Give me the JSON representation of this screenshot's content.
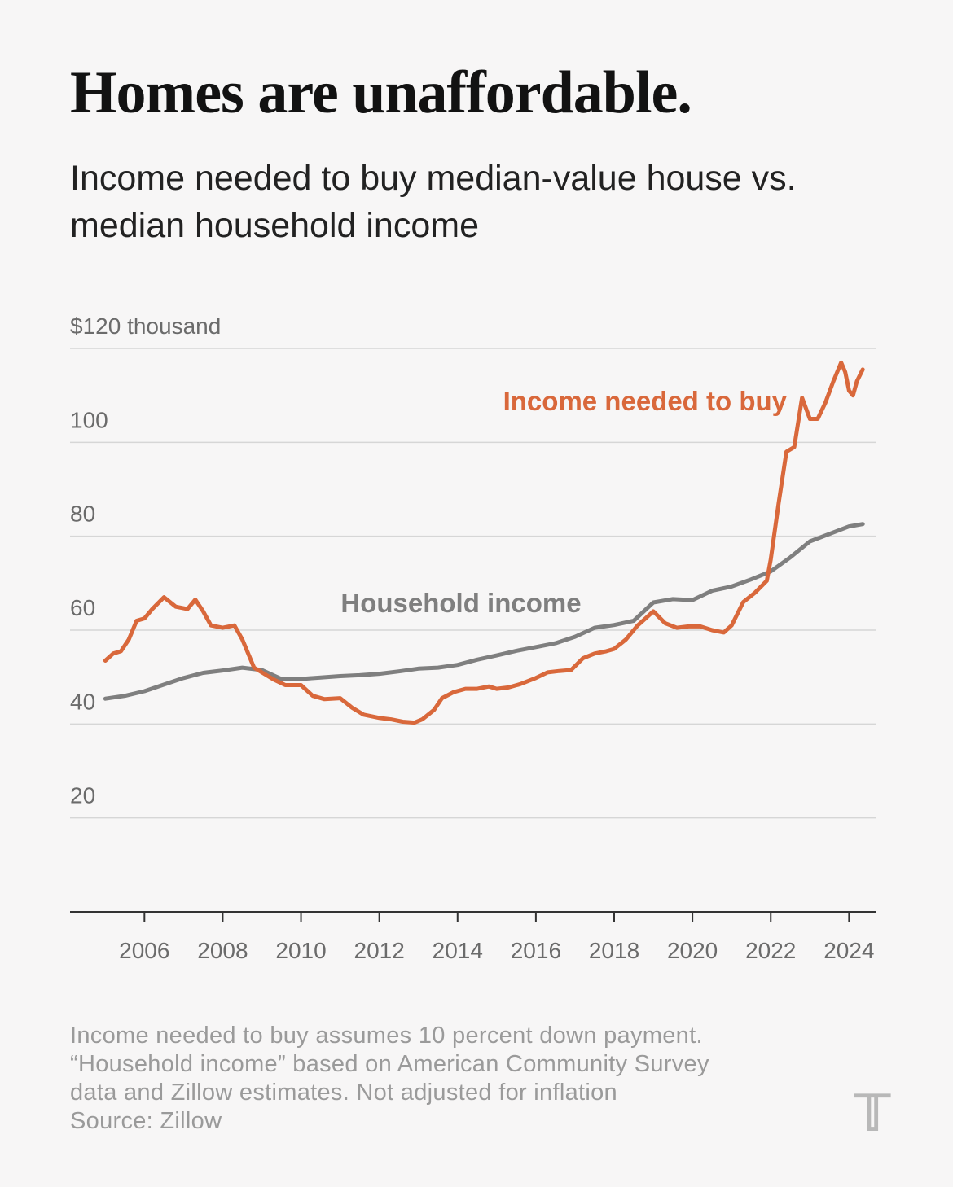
{
  "header": {
    "title": "Homes are unaffordable.",
    "subtitle": "Income needed to buy median-value house vs. median household income"
  },
  "notes": [
    "Income needed to buy assumes 10 percent down payment.",
    "“Household income” based on American Community Survey",
    "data and Zillow estimates. Not adjusted for inflation",
    "Source: Zillow"
  ],
  "logo": {
    "glyph": "𝕋",
    "icon": "nyt-logo-icon"
  },
  "colors": {
    "needed": "#d9683b",
    "household": "#7f7f7f",
    "grid": "#d6d6d6",
    "axis": "#333333",
    "tick_label": "#6b6b6b"
  },
  "chart_data": {
    "type": "line",
    "title": "Homes are unaffordable.",
    "ylabel": "$120 thousand",
    "ylim": [
      0,
      120
    ],
    "y_ticks": [
      20,
      40,
      60,
      80,
      100,
      120
    ],
    "y_tick_labels": [
      "20",
      "40",
      "60",
      "80",
      "100",
      "$120 thousand"
    ],
    "xlim": [
      2004.1,
      2024.7
    ],
    "x_ticks": [
      2006,
      2008,
      2010,
      2012,
      2014,
      2016,
      2018,
      2020,
      2022,
      2024
    ],
    "x_tick_labels": [
      "2006",
      "2008",
      "2010",
      "2012",
      "2014",
      "2016",
      "2018",
      "2020",
      "2022",
      "2024"
    ],
    "series": [
      {
        "name": "Household income",
        "label": "Household income",
        "x": [
          2005.0,
          2005.5,
          2006.0,
          2006.5,
          2007.0,
          2007.5,
          2008.0,
          2008.5,
          2009.0,
          2009.5,
          2010.0,
          2010.5,
          2011.0,
          2011.5,
          2012.0,
          2012.5,
          2013.0,
          2013.5,
          2014.0,
          2014.5,
          2015.0,
          2015.5,
          2016.0,
          2016.5,
          2017.0,
          2017.5,
          2018.0,
          2018.5,
          2019.0,
          2019.5,
          2020.0,
          2020.5,
          2021.0,
          2021.5,
          2022.0,
          2022.5,
          2023.0,
          2023.5,
          2024.0,
          2024.35
        ],
        "values": [
          45.4,
          46.0,
          47.0,
          48.4,
          49.8,
          50.9,
          51.4,
          52.0,
          51.5,
          49.6,
          49.6,
          49.9,
          50.2,
          50.4,
          50.7,
          51.2,
          51.8,
          52.0,
          52.6,
          53.7,
          54.6,
          55.6,
          56.4,
          57.2,
          58.6,
          60.5,
          61.1,
          62.0,
          65.9,
          66.6,
          66.4,
          68.4,
          69.3,
          70.8,
          72.5,
          75.5,
          78.9,
          80.5,
          82.1,
          82.6
        ]
      },
      {
        "name": "Income needed to buy",
        "label": "Income needed to buy",
        "x": [
          2005.0,
          2005.2,
          2005.4,
          2005.6,
          2005.8,
          2006.0,
          2006.2,
          2006.5,
          2006.8,
          2007.1,
          2007.3,
          2007.5,
          2007.7,
          2008.0,
          2008.3,
          2008.5,
          2008.8,
          2009.0,
          2009.3,
          2009.6,
          2010.0,
          2010.3,
          2010.6,
          2011.0,
          2011.3,
          2011.6,
          2012.0,
          2012.3,
          2012.6,
          2012.9,
          2013.1,
          2013.4,
          2013.6,
          2013.9,
          2014.2,
          2014.5,
          2014.8,
          2015.0,
          2015.3,
          2015.6,
          2016.0,
          2016.3,
          2016.6,
          2016.9,
          2017.2,
          2017.5,
          2017.8,
          2018.0,
          2018.3,
          2018.6,
          2018.8,
          2019.0,
          2019.3,
          2019.6,
          2019.9,
          2020.2,
          2020.5,
          2020.8,
          2021.0,
          2021.3,
          2021.6,
          2021.9,
          2022.0,
          2022.2,
          2022.4,
          2022.6,
          2022.8,
          2023.0,
          2023.2,
          2023.4,
          2023.6,
          2023.8,
          2023.9,
          2024.0,
          2024.1,
          2024.2,
          2024.35
        ],
        "values": [
          53.5,
          55.0,
          55.5,
          58.0,
          62.0,
          62.5,
          64.5,
          67.0,
          65.0,
          64.5,
          66.5,
          64.0,
          61.0,
          60.5,
          61.0,
          58.0,
          52.0,
          51.0,
          49.5,
          48.3,
          48.3,
          46.0,
          45.3,
          45.5,
          43.5,
          42.0,
          41.3,
          41.0,
          40.5,
          40.3,
          41.0,
          43.0,
          45.5,
          46.8,
          47.5,
          47.5,
          48.0,
          47.5,
          47.8,
          48.5,
          49.8,
          51.0,
          51.3,
          51.5,
          54.0,
          55.0,
          55.5,
          56.0,
          58.0,
          61.0,
          62.5,
          64.0,
          61.5,
          60.5,
          60.8,
          60.8,
          60.0,
          59.5,
          61.0,
          66.0,
          68.0,
          70.5,
          75.0,
          87.0,
          98.0,
          99.0,
          109.5,
          105.0,
          105.0,
          108.5,
          113.0,
          117.0,
          115.0,
          111.0,
          110.0,
          113.0,
          115.5
        ]
      }
    ]
  }
}
